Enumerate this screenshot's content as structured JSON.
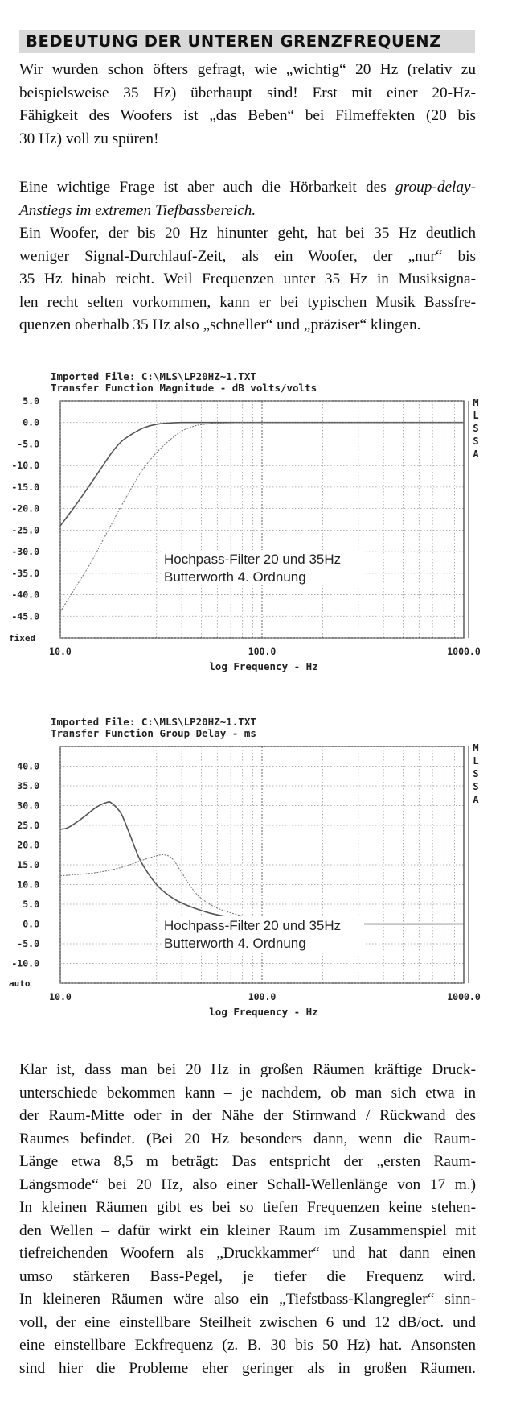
{
  "heading": "BEDEUTUNG DER UNTEREN GRENZFREQUENZ",
  "paragraphs": {
    "p1": [
      "Wir wurden schon öfters gefragt, wie „wichtig“ 20 Hz (relativ zu",
      "beispielsweise 35 Hz) überhaupt sind! Erst mit einer 20-Hz-",
      "Fähigkeit des Woofers ist „das Beben“ bei Filmeffekten (20 bis",
      "30 Hz) voll zu spüren!"
    ],
    "p2_intro": "Eine wichtige Frage ist aber auch die Hörbarkeit des ",
    "p2_italic_1": "group-delay-",
    "p2_italic_2": "Anstiegs im extremen Tiefbassbereich.",
    "p3": [
      "Ein Woofer, der bis 20 Hz hinunter geht, hat bei 35 Hz deutlich",
      "weniger Signal-Durchlauf-Zeit, als ein Woofer, der „nur“ bis",
      "35 Hz hinab reicht. Weil Frequenzen unter 35 Hz in Musiksigna-",
      "len recht selten vorkommen, kann er bei typischen Musik Bassfre-",
      "quenzen oberhalb 35 Hz also „schneller“ und „präziser“ klingen."
    ],
    "p4": [
      "Klar ist, dass man bei 20 Hz in großen Räumen kräftige Druck-",
      "unterschiede bekommen kann – je nachdem, ob man sich etwa in",
      "der Raum-Mitte oder in der Nähe der Stirnwand / Rückwand des",
      "Raumes befindet. (Bei 20  Hz besonders dann, wenn die Raum-",
      "Länge etwa 8,5 m beträgt: Das entspricht der „ersten Raum-",
      "Längsmode“ bei 20 Hz, also einer Schall-Wellenlänge von 17 m.)",
      "In kleinen Räumen gibt es bei so tiefen Frequenzen keine stehen-",
      "den Wellen – dafür wirkt ein kleiner Raum im Zusammenspiel mit",
      "tiefreichenden Woofern als „Druckkammer“ und hat dann einen",
      "umso stärkeren Bass-Pegel, je tiefer die Frequenz wird.",
      "In kleineren Räumen wäre also ein „Tiefstbass-Klangregler“ sinn-",
      "voll, der eine einstellbare Steilheit zwischen 6 und 12 dB/oct. und",
      "eine einstellbare Eckfrequenz (z. B. 30 bis 50 Hz) hat. Ansonsten",
      "sind hier die Probleme eher geringer als in großen Räumen."
    ]
  },
  "chart_data": [
    {
      "type": "line",
      "header_line1": "Imported File: C:\\MLS\\LP20HZ~1.TXT",
      "header_line2": "Transfer Function Magnitude - dB volts/volts",
      "xlabel": "log Frequency - Hz",
      "x_scale": "log",
      "xlim": [
        10,
        1000
      ],
      "x_tick_labels": [
        "10.0",
        "100.0",
        "1000.0"
      ],
      "ylim": [
        -50,
        5
      ],
      "y_tick_labels": [
        "5.0",
        "0.0",
        "-5.0",
        "-10.0",
        "-15.0",
        "-20.0",
        "-25.0",
        "-30.0",
        "-35.0",
        "-40.0",
        "-45.0"
      ],
      "y_bottom_label": "fixed",
      "side_label": "MLSSA",
      "annotation_line1": "Hochpass-Filter 20 und 35Hz",
      "annotation_line2": "Butterworth 4. Ordnung",
      "grid": true,
      "series": [
        {
          "style": "solid",
          "color": "#555555",
          "x": [
            10,
            12,
            14,
            16,
            18,
            20,
            23,
            26,
            30,
            35,
            40,
            50,
            60,
            80,
            100,
            1000
          ],
          "y": [
            -24,
            -19,
            -14.5,
            -10.5,
            -7,
            -4.5,
            -2.5,
            -1.2,
            -0.4,
            -0.1,
            0,
            0,
            0,
            0,
            0,
            0
          ]
        },
        {
          "style": "dotted",
          "color": "#777777",
          "x": [
            10,
            12,
            14,
            16,
            18,
            20,
            23,
            26,
            30,
            35,
            40,
            45,
            50,
            60,
            80,
            100,
            1000
          ],
          "y": [
            -44,
            -38,
            -33,
            -28,
            -23.5,
            -19.5,
            -14.5,
            -10.5,
            -7,
            -4,
            -2,
            -1,
            -0.5,
            -0.2,
            0,
            0,
            0
          ]
        }
      ]
    },
    {
      "type": "line",
      "header_line1": "Imported File: C:\\MLS\\LP20HZ~1.TXT",
      "header_line2": "Transfer Function Group Delay - ms",
      "xlabel": "log Frequency - Hz",
      "x_scale": "log",
      "xlim": [
        10,
        1000
      ],
      "x_tick_labels": [
        "10.0",
        "100.0",
        "1000.0"
      ],
      "ylim": [
        -15,
        45
      ],
      "y_tick_labels": [
        "40.0",
        "35.0",
        "30.0",
        "25.0",
        "20.0",
        "15.0",
        "10.0",
        "5.0",
        "0.0",
        "-5.0",
        "-10.0"
      ],
      "y_bottom_label": "auto",
      "side_label": "MLSSA",
      "annotation_line1": "Hochpass-Filter 20 und 35Hz",
      "annotation_line2": "Butterworth 4. Ordnung",
      "grid": true,
      "series": [
        {
          "style": "solid",
          "color": "#555555",
          "x": [
            10,
            11,
            13,
            15,
            17,
            18,
            20,
            22,
            25,
            30,
            35,
            40,
            50,
            60,
            80,
            100,
            150,
            200,
            300,
            1000
          ],
          "y": [
            24,
            24.5,
            27,
            29.5,
            30.8,
            30.6,
            28,
            23,
            16,
            10,
            7,
            5.3,
            3.4,
            2.3,
            1.3,
            0.8,
            0.3,
            0.1,
            0,
            0
          ]
        },
        {
          "style": "dotted",
          "color": "#777777",
          "x": [
            10,
            15,
            20,
            25,
            30,
            33,
            36,
            40,
            45,
            50,
            60,
            80,
            100,
            150,
            200,
            300,
            1000
          ],
          "y": [
            12.2,
            13,
            14.3,
            16,
            17.3,
            17.5,
            16.5,
            13,
            9,
            6.5,
            4,
            2,
            1.2,
            0.5,
            0.2,
            0,
            0
          ]
        }
      ]
    }
  ]
}
